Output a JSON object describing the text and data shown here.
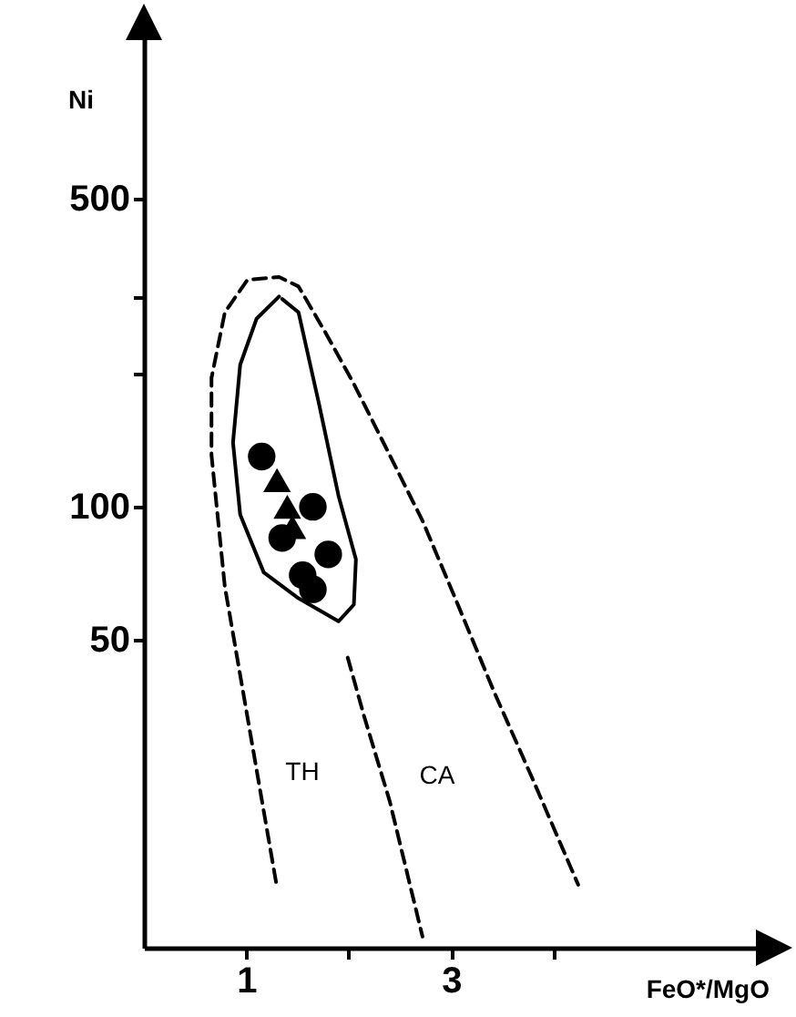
{
  "chart_data": {
    "type": "scatter",
    "xlabel": "FeO*/MgO",
    "ylabel": "Ni",
    "log": "y",
    "grid": false,
    "xlim": [
      0,
      6.1
    ],
    "xticks": [
      1,
      {
        "value": 2,
        "label": null
      },
      3,
      {
        "value": 4,
        "label": null
      }
    ],
    "ylim": [
      10,
      1200
    ],
    "yticks": [
      50,
      100,
      {
        "value": 200,
        "label": null
      },
      {
        "value": 300,
        "label": null
      },
      500
    ],
    "series": [
      {
        "type": "line",
        "line_style": "dashed",
        "color": "#000000",
        "x": [
          1.29,
          0.79,
          0.66,
          0.66,
          0.79,
          1.01,
          1.32,
          1.51,
          1.77,
          2.05,
          2.4,
          2.72,
          3.04,
          3.42,
          3.8,
          4.24
        ],
        "values": [
          14.1,
          66,
          131,
          196,
          276,
          327,
          332,
          316,
          249,
          190,
          131,
          93,
          62,
          38,
          24,
          13.9
        ]
      },
      {
        "type": "line",
        "line_style": "solid",
        "color": "#000000",
        "x": [
          1.32,
          1.1,
          0.94,
          0.87,
          0.94,
          1.17,
          1.51,
          1.9,
          2.05,
          2.07,
          1.9,
          1.71,
          1.51,
          1.35
        ],
        "values": [
          300,
          267,
          210,
          140,
          96,
          71,
          62,
          55,
          60,
          76,
          106,
          171,
          276,
          296
        ]
      },
      {
        "type": "line",
        "line_style": "dashed",
        "color": "#000000",
        "x": [
          1.99,
          2.15,
          2.4,
          2.72
        ],
        "values": [
          45.5,
          33.5,
          21.5,
          10.6
        ]
      },
      {
        "marker": "circle",
        "color": "#000000",
        "x": [
          1.15,
          1.65,
          1.35,
          1.8,
          1.65,
          1.55
        ],
        "values": [
          130,
          100,
          85,
          78,
          65,
          70
        ]
      },
      {
        "marker": "triangle",
        "color": "#000000",
        "x": [
          1.3,
          1.4,
          1.45
        ],
        "values": [
          115,
          100,
          90
        ]
      }
    ],
    "annotations": [
      "TH",
      "CA"
    ]
  }
}
